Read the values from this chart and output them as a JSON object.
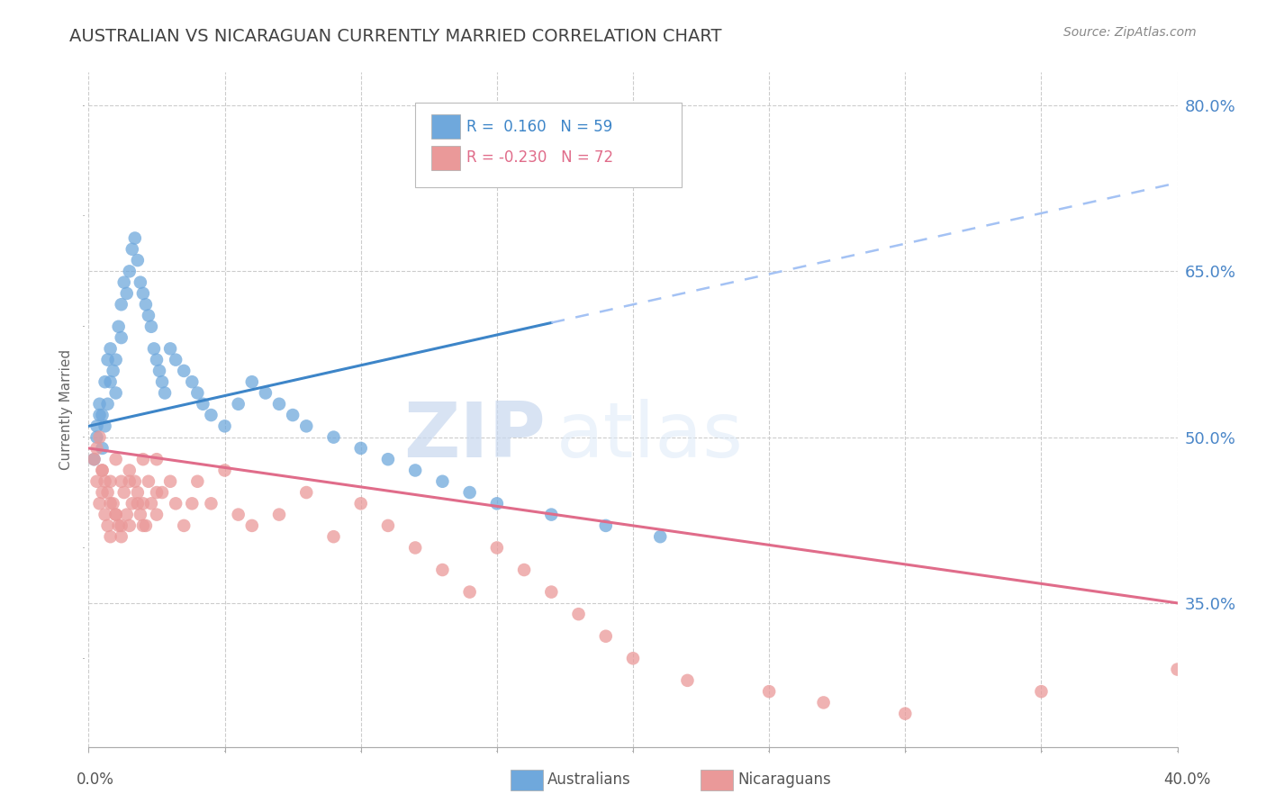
{
  "title": "AUSTRALIAN VS NICARAGUAN CURRENTLY MARRIED CORRELATION CHART",
  "source": "Source: ZipAtlas.com",
  "ylabel": "Currently Married",
  "x_min": 0.0,
  "x_max": 40.0,
  "y_min": 22.0,
  "y_max": 83.0,
  "right_yticks": [
    35.0,
    50.0,
    65.0,
    80.0
  ],
  "legend_blue_R": "0.160",
  "legend_blue_N": "59",
  "legend_pink_R": "-0.230",
  "legend_pink_N": "72",
  "blue_color": "#6fa8dc",
  "pink_color": "#ea9999",
  "blue_line_color": "#3d85c8",
  "pink_line_color": "#e06c8a",
  "dashed_line_color": "#a4c2f4",
  "watermark_zip": "ZIP",
  "watermark_atlas": "atlas",
  "grid_color": "#cccccc",
  "title_color": "#434343",
  "right_axis_color": "#4a86c8",
  "au_x": [
    0.3,
    0.4,
    0.5,
    0.6,
    0.7,
    0.8,
    0.9,
    1.0,
    1.1,
    1.2,
    1.3,
    1.4,
    1.5,
    1.6,
    1.7,
    1.8,
    1.9,
    2.0,
    2.1,
    2.2,
    2.3,
    2.4,
    2.5,
    2.6,
    2.7,
    2.8,
    3.0,
    3.2,
    3.5,
    3.8,
    4.0,
    4.2,
    4.5,
    5.0,
    5.5,
    6.0,
    6.5,
    7.0,
    7.5,
    8.0,
    9.0,
    10.0,
    11.0,
    12.0,
    13.0,
    14.0,
    15.0,
    17.0,
    19.0,
    21.0,
    0.2,
    0.3,
    0.4,
    0.5,
    0.6,
    0.7,
    0.8,
    1.0,
    1.2
  ],
  "au_y": [
    51,
    53,
    52,
    55,
    57,
    58,
    56,
    54,
    60,
    62,
    64,
    63,
    65,
    67,
    68,
    66,
    64,
    63,
    62,
    61,
    60,
    58,
    57,
    56,
    55,
    54,
    58,
    57,
    56,
    55,
    54,
    53,
    52,
    51,
    53,
    55,
    54,
    53,
    52,
    51,
    50,
    49,
    48,
    47,
    46,
    45,
    44,
    43,
    42,
    41,
    48,
    50,
    52,
    49,
    51,
    53,
    55,
    57,
    59
  ],
  "ni_x": [
    0.2,
    0.3,
    0.4,
    0.5,
    0.5,
    0.6,
    0.7,
    0.8,
    0.8,
    0.9,
    1.0,
    1.0,
    1.1,
    1.2,
    1.2,
    1.3,
    1.4,
    1.5,
    1.5,
    1.6,
    1.7,
    1.8,
    1.9,
    2.0,
    2.0,
    2.1,
    2.2,
    2.3,
    2.5,
    2.5,
    2.7,
    3.0,
    3.2,
    3.5,
    3.8,
    4.0,
    4.5,
    5.0,
    5.5,
    6.0,
    7.0,
    8.0,
    9.0,
    10.0,
    11.0,
    12.0,
    13.0,
    14.0,
    15.0,
    16.0,
    17.0,
    18.0,
    19.0,
    20.0,
    22.0,
    25.0,
    27.0,
    30.0,
    35.0,
    40.0,
    0.3,
    0.4,
    0.5,
    0.6,
    0.7,
    0.8,
    1.0,
    1.2,
    1.5,
    1.8,
    2.0,
    2.5
  ],
  "ni_y": [
    48,
    46,
    44,
    45,
    47,
    43,
    42,
    41,
    46,
    44,
    48,
    43,
    42,
    46,
    41,
    45,
    43,
    47,
    42,
    44,
    46,
    45,
    43,
    48,
    44,
    42,
    46,
    44,
    48,
    43,
    45,
    46,
    44,
    42,
    44,
    46,
    44,
    47,
    43,
    42,
    43,
    45,
    41,
    44,
    42,
    40,
    38,
    36,
    40,
    38,
    36,
    34,
    32,
    30,
    28,
    27,
    26,
    25,
    27,
    29,
    49,
    50,
    47,
    46,
    45,
    44,
    43,
    42,
    46,
    44,
    42,
    45
  ]
}
